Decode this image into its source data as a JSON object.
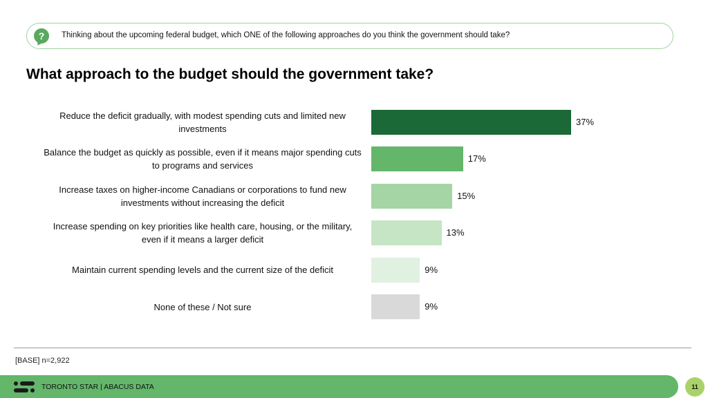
{
  "question": {
    "icon": "question-bubble-icon",
    "text": "Thinking about the upcoming federal budget, which ONE of the following approaches do you think the government should take?"
  },
  "title": "What approach to the budget should the government take?",
  "chart_data": {
    "type": "bar",
    "orientation": "horizontal",
    "title": "What approach to the budget should the government take?",
    "xlabel": "",
    "ylabel": "",
    "xlim": [
      0,
      40
    ],
    "grid": false,
    "categories": [
      "Reduce the deficit gradually, with modest spending cuts and limited new investments",
      "Balance the budget as quickly as possible, even if it means major spending cuts to programs and services",
      "Increase taxes on higher-income Canadians or corporations to fund new investments without increasing the deficit",
      "Increase spending on key priorities like health care, housing, or the military, even if it means a larger deficit",
      "Maintain current spending levels and the current size of the deficit",
      "None of these / Not sure"
    ],
    "values": [
      37,
      17,
      15,
      13,
      9,
      9
    ],
    "labels": [
      "37%",
      "17%",
      "15%",
      "13%",
      "9%",
      "9%"
    ],
    "colors": [
      "#1b6936",
      "#64b66a",
      "#a5d4a5",
      "#c5e5c5",
      "#e1f1e1",
      "#d9d9d9"
    ]
  },
  "base": "[BASE] n=2,922",
  "footer": {
    "logo": "abacus-logo-icon",
    "text": "TORONTO STAR  |  ABACUS DATA",
    "page": "11",
    "color": "#64b66a"
  }
}
